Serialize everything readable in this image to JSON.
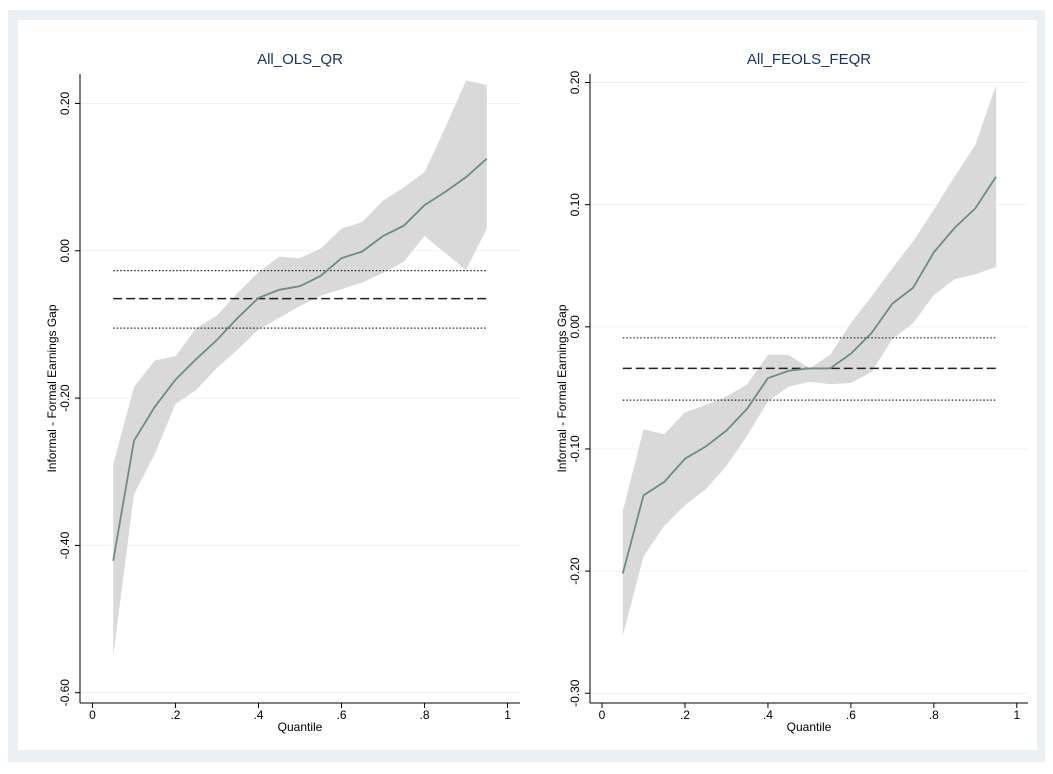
{
  "chart_data": [
    {
      "type": "line",
      "title": "All_OLS_QR",
      "x_label": "Quantile",
      "y_label": "Informal - Formal Earnings Gap",
      "x": [
        0.05,
        0.1,
        0.15,
        0.2,
        0.25,
        0.3,
        0.35,
        0.4,
        0.45,
        0.5,
        0.55,
        0.6,
        0.65,
        0.7,
        0.75,
        0.8,
        0.85,
        0.9,
        0.95
      ],
      "values": [
        -0.421,
        -0.258,
        -0.212,
        -0.175,
        -0.147,
        -0.121,
        -0.091,
        -0.064,
        -0.053,
        -0.048,
        -0.034,
        -0.01,
        -0.001,
        0.02,
        0.034,
        0.062,
        0.08,
        0.1,
        0.125
      ],
      "ci_upper": [
        -0.29,
        -0.185,
        -0.149,
        -0.143,
        -0.105,
        -0.088,
        -0.057,
        -0.029,
        -0.008,
        -0.01,
        0.003,
        0.03,
        0.039,
        0.068,
        0.086,
        0.107,
        0.167,
        0.231,
        0.225
      ],
      "ci_lower": [
        -0.55,
        -0.331,
        -0.276,
        -0.208,
        -0.189,
        -0.159,
        -0.134,
        -0.107,
        -0.091,
        -0.075,
        -0.061,
        -0.052,
        -0.043,
        -0.03,
        -0.015,
        0.02,
        -0.003,
        -0.026,
        0.03
      ],
      "color": "#6a8f7f",
      "band_color": "#d9d9d9",
      "hlines": [
        {
          "value": -0.065,
          "style": "dashed"
        },
        {
          "value": -0.027,
          "style": "dotted"
        },
        {
          "value": -0.105,
          "style": "dotted"
        }
      ],
      "xlim": [
        -0.03,
        1.03
      ],
      "ylim": [
        -0.614,
        0.24
      ],
      "xticks": [
        0,
        {
          "value": 0.2,
          "label": ".2"
        },
        {
          "value": 0.4,
          "label": ".4"
        },
        {
          "value": 0.6,
          "label": ".6"
        },
        {
          "value": 0.8,
          "label": ".8"
        },
        1
      ],
      "yticks": [
        {
          "value": -0.6,
          "label": "-0.60"
        },
        {
          "value": -0.4,
          "label": "-0.40"
        },
        {
          "value": -0.2,
          "label": "-0.20"
        },
        {
          "value": 0,
          "label": "0.00"
        },
        {
          "value": 0.2,
          "label": "0.20"
        }
      ],
      "grid": true
    },
    {
      "type": "line",
      "title": "All_FEOLS_FEQR",
      "x_label": "Quantile",
      "y_label": "Informal - Formal Earnings Gap",
      "x": [
        0.05,
        0.1,
        0.15,
        0.2,
        0.25,
        0.3,
        0.35,
        0.4,
        0.45,
        0.5,
        0.55,
        0.6,
        0.65,
        0.7,
        0.75,
        0.8,
        0.85,
        0.9,
        0.95
      ],
      "values": [
        -0.202,
        -0.138,
        -0.127,
        -0.108,
        -0.098,
        -0.085,
        -0.067,
        -0.042,
        -0.036,
        -0.034,
        -0.034,
        -0.022,
        -0.005,
        0.019,
        0.032,
        0.061,
        0.081,
        0.097,
        0.123
      ],
      "ci_upper": [
        -0.151,
        -0.084,
        -0.088,
        -0.07,
        -0.064,
        -0.057,
        -0.047,
        -0.023,
        -0.023,
        -0.034,
        -0.023,
        0.003,
        0.025,
        0.048,
        0.07,
        0.096,
        0.123,
        0.149,
        0.198
      ],
      "ci_lower": [
        -0.253,
        -0.188,
        -0.163,
        -0.146,
        -0.133,
        -0.114,
        -0.089,
        -0.061,
        -0.049,
        -0.045,
        -0.047,
        -0.046,
        -0.037,
        -0.01,
        0.003,
        0.026,
        0.039,
        0.043,
        0.049
      ],
      "color": "#6a8f7f",
      "band_color": "#d9d9d9",
      "hlines": [
        {
          "value": -0.034,
          "style": "dashed"
        },
        {
          "value": -0.009,
          "style": "dotted"
        },
        {
          "value": -0.06,
          "style": "dotted"
        }
      ],
      "xlim": [
        -0.029,
        1.027
      ],
      "ylim": [
        -0.308,
        0.207
      ],
      "xticks": [
        0,
        {
          "value": 0.2,
          "label": ".2"
        },
        {
          "value": 0.4,
          "label": ".4"
        },
        {
          "value": 0.6,
          "label": ".6"
        },
        {
          "value": 0.8,
          "label": ".8"
        },
        1
      ],
      "yticks": [
        {
          "value": -0.3,
          "label": "-0.30"
        },
        {
          "value": -0.2,
          "label": "-0.20"
        },
        {
          "value": -0.1,
          "label": "-0.10"
        },
        {
          "value": 0,
          "label": "0.00"
        },
        {
          "value": 0.1,
          "label": "0.10"
        },
        {
          "value": 0.2,
          "label": "0.20"
        }
      ],
      "grid": true
    }
  ]
}
